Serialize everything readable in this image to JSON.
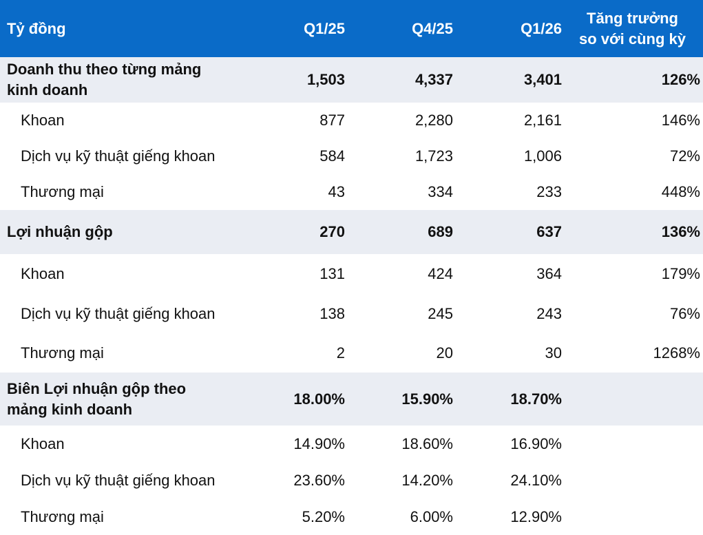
{
  "header": {
    "label": "Tỷ đồng",
    "periods": [
      "Q1/25",
      "Q4/25",
      "Q1/26"
    ],
    "growth_line1": "Tăng trưởng",
    "growth_line2": "so với cùng kỳ"
  },
  "sections": [
    {
      "title_line1": "Doanh thu theo từng mảng",
      "title_line2": "kinh doanh",
      "values": [
        "1,503",
        "4,337",
        "3,401",
        "126%"
      ],
      "rows": [
        {
          "label": "Khoan",
          "values": [
            "877",
            "2,280",
            "2,161",
            "146%"
          ]
        },
        {
          "label": "Dịch vụ kỹ thuật giếng khoan",
          "values": [
            "584",
            "1,723",
            "1,006",
            "72%"
          ]
        },
        {
          "label": "Thương mại",
          "values": [
            "43",
            "334",
            "233",
            "448%"
          ]
        }
      ]
    },
    {
      "title_line1": "Lợi nhuận gộp",
      "title_line2": "",
      "values": [
        "270",
        "689",
        "637",
        "136%"
      ],
      "rows": [
        {
          "label": "Khoan",
          "values": [
            "131",
            "424",
            "364",
            "179%"
          ]
        },
        {
          "label": "Dịch vụ kỹ thuật giếng khoan",
          "values": [
            "138",
            "245",
            "243",
            "76%"
          ]
        },
        {
          "label": "Thương mại",
          "values": [
            "2",
            "20",
            "30",
            "1268%"
          ]
        }
      ]
    },
    {
      "title_line1": "Biên Lợi nhuận gộp theo",
      "title_line2": "mảng kinh doanh",
      "values": [
        "18.00%",
        "15.90%",
        "18.70%",
        ""
      ],
      "rows": [
        {
          "label": "Khoan",
          "values": [
            "14.90%",
            "18.60%",
            "16.90%",
            ""
          ]
        },
        {
          "label": "Dịch vụ kỹ thuật giếng khoan",
          "values": [
            "23.60%",
            "14.20%",
            "24.10%",
            ""
          ]
        },
        {
          "label": "Thương mại",
          "values": [
            "5.20%",
            "6.00%",
            "12.90%",
            ""
          ]
        }
      ]
    }
  ]
}
